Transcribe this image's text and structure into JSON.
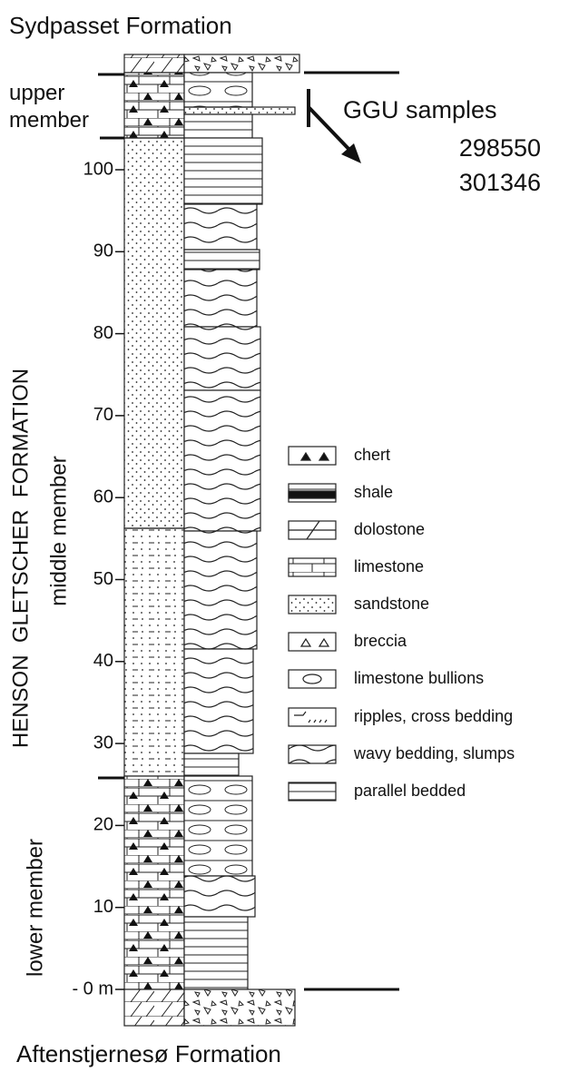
{
  "top_formation": "Sydpasset Formation",
  "bottom_formation": "Aftenstjernesø Formation",
  "formation": "HENSON  GLETSCHER  FORMATION",
  "members": [
    "upper member",
    "middle member",
    "lower member"
  ],
  "samples": {
    "label": "GGU samples",
    "ids": [
      "298550",
      "301346"
    ]
  },
  "scale": [
    "- 0 m",
    "10",
    "20",
    "30",
    "40",
    "50",
    "60",
    "70",
    "80",
    "90",
    "100"
  ],
  "legend": [
    "chert",
    "shale",
    "dolostone",
    "limestone",
    "sandstone",
    "breccia",
    "limestone bullions",
    "ripples, cross bedding",
    "wavy bedding,  slumps",
    "parallel bedded"
  ]
}
